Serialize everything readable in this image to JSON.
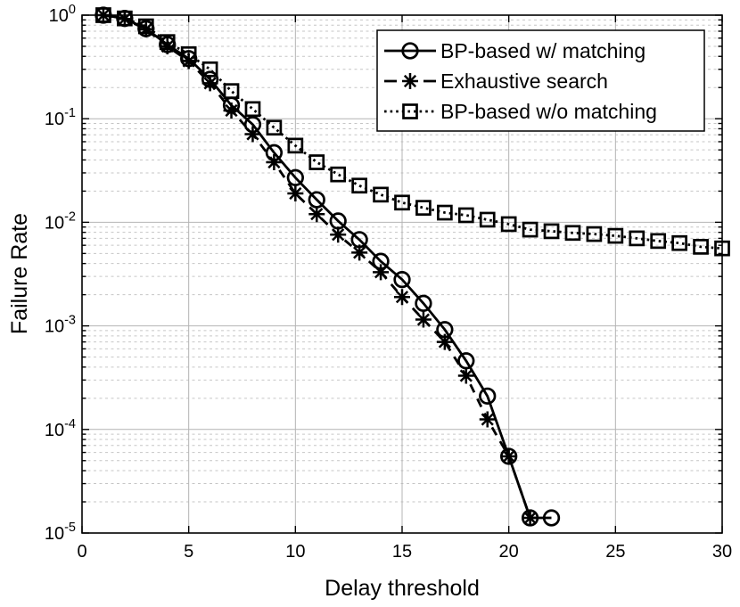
{
  "figure": {
    "background": "#ffffff",
    "foreground": "#000000"
  },
  "chart_data": {
    "type": "line",
    "title": "",
    "xlabel": "Delay threshold",
    "ylabel": "Failure Rate",
    "x_axis": {
      "min": 0,
      "max": 30,
      "tick_values": [
        0,
        5,
        10,
        15,
        20,
        25,
        30
      ],
      "tick_labels": [
        "0",
        "5",
        "10",
        "15",
        "20",
        "25",
        "30"
      ]
    },
    "y_axis": {
      "scale": "log",
      "min": 1e-05,
      "max": 1,
      "base_label": "10",
      "tick_values": [
        1,
        0.1,
        0.01,
        0.001,
        0.0001,
        1e-05
      ],
      "tick_exponents": [
        "0",
        "-1",
        "-2",
        "-3",
        "-4",
        "-5"
      ]
    },
    "grid": {
      "major": true,
      "minor_horizontal": true,
      "major_color": "#b4b4b4",
      "minor_color": "#c6c6c6"
    },
    "line_color": "#000000",
    "legend": {
      "position": "top-right",
      "background": "#ffffff",
      "border_color": "#000000"
    },
    "series": [
      {
        "name": "BP-based w/ matching",
        "line": "solid",
        "marker": "circle",
        "x": [
          1,
          2,
          3,
          4,
          5,
          6,
          7,
          8,
          9,
          10,
          11,
          12,
          13,
          14,
          15,
          16,
          17,
          18,
          19,
          20,
          21,
          22
        ],
        "y": [
          1.0,
          0.93,
          0.74,
          0.52,
          0.38,
          0.24,
          0.135,
          0.088,
          0.047,
          0.027,
          0.0165,
          0.0103,
          0.0068,
          0.0042,
          0.0028,
          0.00165,
          0.00092,
          0.00046,
          0.00021,
          5.5e-05,
          1.4e-05,
          1.4e-05
        ]
      },
      {
        "name": "Exhaustive search",
        "line": "dashed",
        "marker": "asterisk",
        "x": [
          1,
          2,
          3,
          4,
          5,
          6,
          7,
          8,
          9,
          10,
          11,
          12,
          13,
          14,
          15,
          16,
          17,
          18,
          19,
          20,
          21
        ],
        "y": [
          1.0,
          0.92,
          0.73,
          0.5,
          0.36,
          0.22,
          0.12,
          0.071,
          0.038,
          0.019,
          0.012,
          0.0076,
          0.0051,
          0.0033,
          0.0019,
          0.00115,
          0.0007,
          0.00033,
          0.000125,
          5.5e-05,
          1.4e-05
        ]
      },
      {
        "name": "BP-based w/o matching",
        "line": "dotted",
        "marker": "square",
        "x": [
          1,
          2,
          3,
          4,
          5,
          6,
          7,
          8,
          9,
          10,
          11,
          12,
          13,
          14,
          15,
          16,
          17,
          18,
          19,
          20,
          21,
          22,
          23,
          24,
          25,
          26,
          27,
          28,
          29,
          30
        ],
        "y": [
          1.0,
          0.93,
          0.78,
          0.55,
          0.42,
          0.3,
          0.185,
          0.124,
          0.082,
          0.055,
          0.038,
          0.029,
          0.0226,
          0.0185,
          0.0155,
          0.0138,
          0.0124,
          0.0117,
          0.0106,
          0.0096,
          0.0085,
          0.0082,
          0.0079,
          0.0077,
          0.0074,
          0.007,
          0.0066,
          0.0063,
          0.0058,
          0.0056
        ]
      }
    ]
  }
}
